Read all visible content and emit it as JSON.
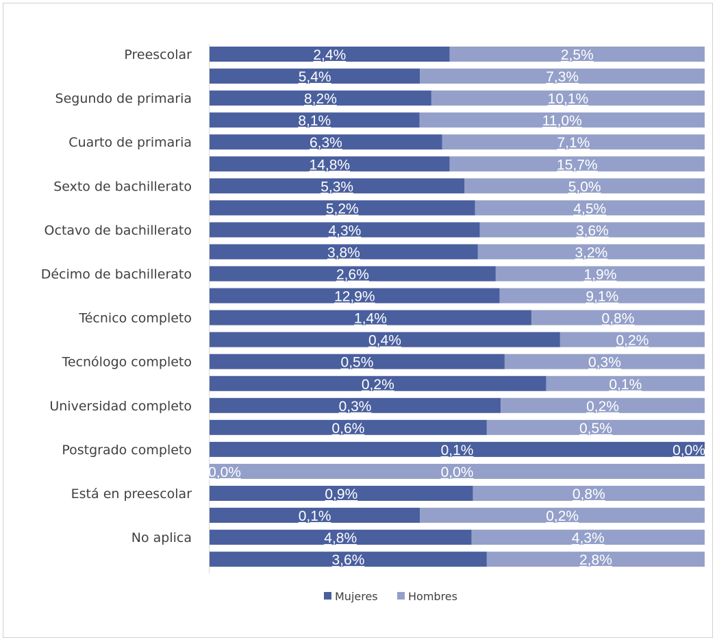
{
  "chart_data": {
    "type": "bar",
    "orientation": "horizontal",
    "stacked": "100%",
    "title": "",
    "xlabel": "",
    "ylabel": "",
    "categories": [
      "Preescolar",
      "",
      "Segundo de primaria",
      "",
      "Cuarto de primaria",
      "",
      "Sexto de bachillerato",
      "",
      "Octavo de bachillerato",
      "",
      "Décimo de bachillerato",
      "",
      "Técnico completo",
      "",
      "Tecnólogo completo",
      "",
      "Universidad completo",
      "",
      "Postgrado completo",
      "",
      "Está en preescolar",
      "",
      "No aplica",
      ""
    ],
    "series": [
      {
        "name": "Mujeres",
        "color": "#4a5f9e",
        "values": [
          2.4,
          5.4,
          8.2,
          8.1,
          6.3,
          14.8,
          5.3,
          5.2,
          4.3,
          3.8,
          2.6,
          12.9,
          1.4,
          0.4,
          0.5,
          0.2,
          0.3,
          0.6,
          0.1,
          0.0,
          0.9,
          0.1,
          4.8,
          3.6
        ],
        "labels": [
          "2,4%",
          "5,4%",
          "8,2%",
          "8,1%",
          "6,3%",
          "14,8%",
          "5,3%",
          "5,2%",
          "4,3%",
          "3,8%",
          "2,6%",
          "12,9%",
          "1,4%",
          "0,4%",
          "0,5%",
          "0,2%",
          "0,3%",
          "0,6%",
          "0,1%",
          "0,0%",
          "0,9%",
          "0,1%",
          "4,8%",
          "3,6%"
        ]
      },
      {
        "name": "Hombres",
        "color": "#94a0c9",
        "values": [
          2.5,
          7.3,
          10.1,
          11.0,
          7.1,
          15.7,
          5.0,
          4.5,
          3.6,
          3.2,
          1.9,
          9.1,
          0.8,
          0.2,
          0.3,
          0.1,
          0.2,
          0.5,
          0.0,
          0.0,
          0.8,
          0.2,
          4.3,
          2.8
        ],
        "labels": [
          "2,5%",
          "7,3%",
          "10,1%",
          "11,0%",
          "7,1%",
          "15,7%",
          "5,0%",
          "4,5%",
          "3,6%",
          "3,2%",
          "1,9%",
          "9,1%",
          "0,8%",
          "0,2%",
          "0,3%",
          "0,1%",
          "0,2%",
          "0,5%",
          "0,0%",
          "0,0%",
          "0,8%",
          "0,2%",
          "4,3%",
          "2,8%"
        ]
      }
    ],
    "share_mujeres": [
      0.485,
      0.425,
      0.448,
      0.424,
      0.47,
      0.485,
      0.515,
      0.536,
      0.546,
      0.542,
      0.578,
      0.586,
      0.65,
      0.708,
      0.596,
      0.68,
      0.588,
      0.56,
      1.0,
      0.0,
      0.532,
      0.425,
      0.529,
      0.56
    ],
    "xlim": [
      0,
      1
    ],
    "legend": "bottom-center"
  }
}
